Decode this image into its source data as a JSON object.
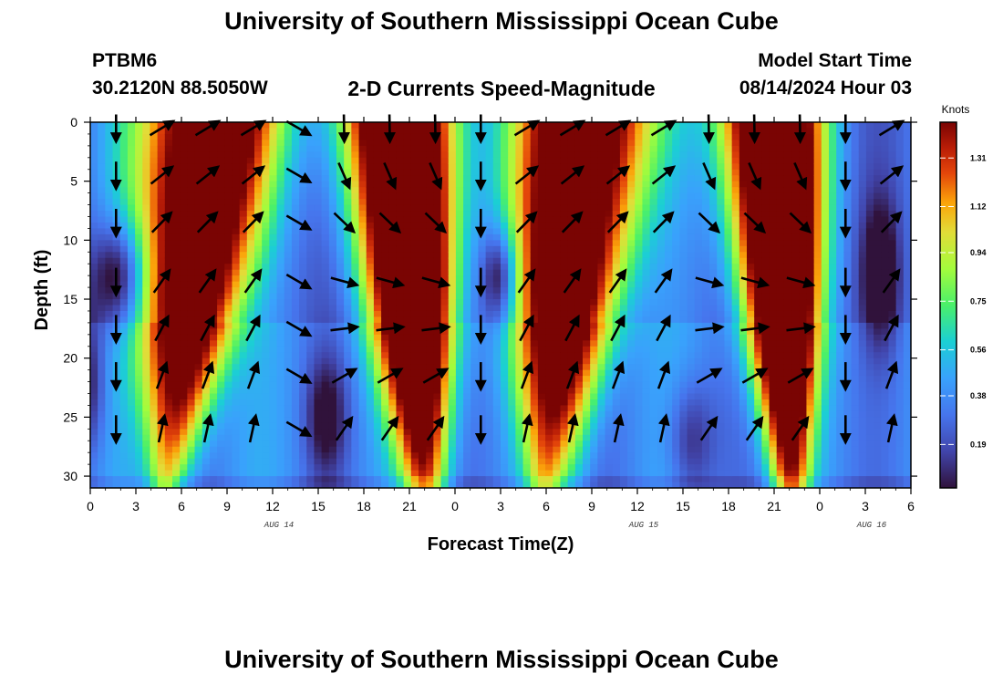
{
  "page": {
    "title": "University of Southern Mississippi Ocean Cube",
    "station": "PTBM6",
    "coords": "30.2120N  88.5050W",
    "subtitle": "2-D Currents Speed-Magnitude",
    "model_start_label": "Model Start Time",
    "model_start_value": "08/14/2024 Hour 03",
    "footer_title": "University of Southern Mississippi Ocean Cube"
  },
  "chart_data": {
    "type": "heatmap",
    "xlabel": "Forecast Time(Z)",
    "ylabel": "Depth (ft)",
    "x_tick_labels": [
      "0",
      "3",
      "6",
      "9",
      "12",
      "15",
      "18",
      "21",
      "0",
      "3",
      "6",
      "9",
      "12",
      "15",
      "18",
      "21",
      "0",
      "3",
      "6"
    ],
    "x_range_hours": [
      0,
      54
    ],
    "date_labels": [
      {
        "label": "AUG 14",
        "hour": 12
      },
      {
        "label": "AUG 15",
        "hour": 36
      },
      {
        "label": "AUG 16",
        "hour": 51
      }
    ],
    "y_ticks": [
      "0",
      "5",
      "10",
      "15",
      "20",
      "25",
      "30"
    ],
    "y_range": [
      0,
      31
    ],
    "y_inverted": true,
    "colorbar": {
      "unit": "Knots",
      "ticks": [
        "0.19",
        "0.38",
        "0.56",
        "0.75",
        "0.94",
        "1.12",
        "1.31"
      ],
      "range": [
        0.02,
        1.45
      ]
    },
    "colors": {
      "low": "#30123b",
      "mid": "#4af06a",
      "high": "#7a0403"
    },
    "speed_knots_sample": {
      "hours": [
        0,
        2,
        4,
        6,
        9,
        12,
        15,
        17,
        19,
        21,
        23,
        25,
        27,
        29,
        31,
        33,
        36,
        39,
        42,
        45,
        47,
        49,
        51,
        53,
        54
      ],
      "depths_ft": [
        0,
        5,
        10,
        15,
        20,
        25,
        30
      ],
      "note_units": "knots"
    },
    "vector_depths_ft": [
      0.5,
      4.5,
      8.5,
      13.5,
      17.5,
      21.5,
      26
    ],
    "vector_hours": [
      3,
      6,
      9,
      12,
      15,
      18,
      21,
      24,
      27,
      30,
      33,
      36,
      39,
      42,
      45,
      48,
      51,
      54
    ]
  }
}
